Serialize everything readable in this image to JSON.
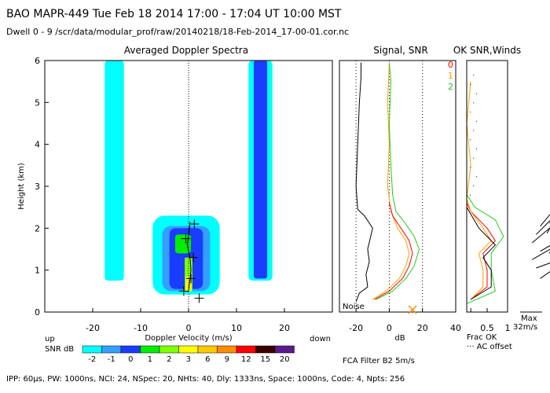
{
  "header": {
    "line1": "BAO  MAPR-449  Tue Feb 18 2014 17:00 - 17:04 UT 10:00 MST",
    "line2": "Dwell  0 - 9   /scr/data/modular_prof/raw/20140218/18-Feb-2014_17-00-01.cor.nc"
  },
  "footer": {
    "params": "IPP: 60μs,  PW: 1000ns,  NCI: 24,  NSpec: 20, NHts: 40,  Dly: 1333ns,  Space: 1000ns,  Code: 4,  Npts: 256",
    "fca": "FCA Filter B2  5m/s"
  },
  "colors": {
    "c_m2": "#00ffff",
    "c_m1": "#33a0ff",
    "c_0": "#1a3cff",
    "c_1": "#00ee00",
    "c_2": "#80ff00",
    "c_3": "#ffff00",
    "c_6": "#ffc800",
    "c_9": "#ff8c00",
    "c_12": "#ff0000",
    "c_15": "#3b0000",
    "c_20": "#5a1a8c",
    "noise": "#000000",
    "snr": "#ffa000",
    "ok0": "#ff0000",
    "ok1": "#ffa000",
    "ok2": "#22cc22"
  },
  "chart_data": [
    {
      "id": "doppler",
      "type": "heatmap",
      "title": "Averaged Doppler Spectra",
      "xlabel": "Doppler Velocity (m/s)",
      "ylabel": "Height (km)",
      "xlim": [
        -30,
        30
      ],
      "ylim": [
        0,
        6
      ],
      "x_ticks": [
        -20,
        -10,
        0,
        10,
        20
      ],
      "y_ticks": [
        0,
        1,
        2,
        3,
        4,
        5,
        6
      ],
      "up_label": "up",
      "down_label": "down",
      "colorbar_label": "SNR dB",
      "colorbar_levels": [
        "-2",
        "-1",
        "0",
        "1",
        "2",
        "3",
        "6",
        "9",
        "12",
        "15",
        "20"
      ],
      "regions": [
        {
          "name": "ground-clutter-left",
          "level": "-2",
          "x": [
            -17.5,
            -13.5
          ],
          "y": [
            0.75,
            6.0
          ]
        },
        {
          "name": "ground-clutter-right-outer",
          "level": "-2",
          "x": [
            12.5,
            17.5
          ],
          "y": [
            0.75,
            6.0
          ]
        },
        {
          "name": "ground-clutter-right-inner",
          "level": "0",
          "x": [
            13.6,
            16.4
          ],
          "y": [
            0.8,
            6.0
          ]
        },
        {
          "name": "echo-outer",
          "level": "-2",
          "x": [
            -7.5,
            6.5
          ],
          "y": [
            0.42,
            2.3
          ]
        },
        {
          "name": "echo-l1",
          "level": "-1",
          "x": [
            -5.5,
            4.5
          ],
          "y": [
            0.5,
            2.05
          ]
        },
        {
          "name": "echo-l2",
          "level": "0",
          "x": [
            -4,
            3
          ],
          "y": [
            0.55,
            2.0
          ]
        },
        {
          "name": "echo-core",
          "level": "1",
          "x": [
            -2.8,
            0.5
          ],
          "y": [
            1.4,
            1.85
          ]
        },
        {
          "name": "echo-column",
          "level": "2",
          "x": [
            -0.8,
            0.8
          ],
          "y": [
            0.5,
            1.3
          ]
        },
        {
          "name": "echo-column-top",
          "level": "3",
          "x": [
            -0.6,
            0.6
          ],
          "y": [
            0.5,
            0.85
          ]
        }
      ],
      "crosses": [
        [
          2.2,
          0.33
        ],
        [
          -1.0,
          0.5
        ],
        [
          0.5,
          0.8
        ],
        [
          1.0,
          1.3
        ],
        [
          -0.6,
          1.75
        ],
        [
          1.2,
          2.1
        ]
      ],
      "mean_velocity_curve": [
        [
          0,
          0.5
        ],
        [
          0.2,
          0.7
        ],
        [
          0.5,
          1.0
        ],
        [
          0.3,
          1.3
        ],
        [
          -0.3,
          1.6
        ],
        [
          0.1,
          1.9
        ],
        [
          0.3,
          2.15
        ]
      ]
    },
    {
      "id": "signal-snr",
      "type": "line",
      "title": "Signal, SNR",
      "xlabel": "dB",
      "xlim": [
        -30,
        40
      ],
      "ylim": [
        0,
        6
      ],
      "x_ticks": [
        -20,
        0,
        20,
        40
      ],
      "noise_label": "Noise",
      "series": [
        {
          "name": "Signal",
          "color_key": "noise",
          "points": [
            [
              -20,
              0.25
            ],
            [
              -18,
              0.45
            ],
            [
              -13,
              0.6
            ],
            [
              -14,
              0.9
            ],
            [
              -12,
              1.2
            ],
            [
              -13,
              1.5
            ],
            [
              -10,
              2.0
            ],
            [
              -15,
              2.3
            ],
            [
              -19,
              2.45
            ],
            [
              -20,
              3.0
            ],
            [
              -19,
              4.0
            ],
            [
              -18,
              5.0
            ],
            [
              -17,
              5.6
            ],
            [
              -17,
              5.95
            ]
          ]
        },
        {
          "name": "SNR",
          "color_key": "snr",
          "points": [
            [
              -10,
              0.3
            ],
            [
              -2,
              0.5
            ],
            [
              6,
              0.8
            ],
            [
              10,
              1.1
            ],
            [
              12,
              1.4
            ],
            [
              10,
              1.7
            ],
            [
              5,
              2.0
            ],
            [
              1,
              2.4
            ],
            [
              -1,
              3.0
            ],
            [
              0,
              4.0
            ],
            [
              -1,
              5.0
            ],
            [
              0,
              5.95
            ]
          ]
        },
        {
          "name": "SNR-1",
          "color_key": "ok0",
          "points": [
            [
              -9,
              0.3
            ],
            [
              0,
              0.5
            ],
            [
              8,
              0.8
            ],
            [
              12,
              1.1
            ],
            [
              14,
              1.4
            ],
            [
              12,
              1.7
            ],
            [
              7,
              2.0
            ],
            [
              2,
              2.3
            ],
            [
              0,
              2.6
            ]
          ]
        },
        {
          "name": "SNR-2",
          "color_key": "ok2",
          "points": [
            [
              -8,
              0.3
            ],
            [
              2,
              0.5
            ],
            [
              10,
              0.8
            ],
            [
              15,
              1.1
            ],
            [
              18,
              1.5
            ],
            [
              15,
              1.8
            ],
            [
              10,
              2.1
            ],
            [
              4,
              2.4
            ],
            [
              2,
              2.8
            ],
            [
              1,
              3.5
            ],
            [
              0,
              4.5
            ],
            [
              1,
              5.5
            ],
            [
              0,
              5.95
            ]
          ]
        }
      ],
      "marker": {
        "symbol": "x",
        "x": 14,
        "y": 0.0
      }
    },
    {
      "id": "ok-snr",
      "type": "line",
      "title": "OK SNR,Winds",
      "xlabel": "Frac OK",
      "xlim": [
        0,
        1
      ],
      "ylim": [
        0,
        6
      ],
      "x_ticks": [
        0.5,
        1
      ],
      "x_tick_labels": [
        "0.5",
        "1"
      ],
      "legend": [
        "0",
        "1",
        "2"
      ],
      "ac_label": "··· AC offset",
      "max_label": "Max",
      "max_value": "32m/s",
      "series": [
        {
          "name": "0",
          "color_key": "ok0",
          "points": [
            [
              0.1,
              0.3
            ],
            [
              0.5,
              0.6
            ],
            [
              0.5,
              1.0
            ],
            [
              0.4,
              1.4
            ],
            [
              0.7,
              1.7
            ],
            [
              0.5,
              2.0
            ],
            [
              0.1,
              2.4
            ],
            [
              0.0,
              2.6
            ]
          ]
        },
        {
          "name": "1",
          "color_key": "ok1",
          "points": [
            [
              0.1,
              0.3
            ],
            [
              0.4,
              0.6
            ],
            [
              0.4,
              1.0
            ],
            [
              0.3,
              1.4
            ],
            [
              0.6,
              1.7
            ],
            [
              0.4,
              2.0
            ],
            [
              0.1,
              2.4
            ],
            [
              0.0,
              2.7
            ],
            [
              0.1,
              3.5
            ],
            [
              0.0,
              4.5
            ],
            [
              0.1,
              5.5
            ]
          ]
        },
        {
          "name": "2",
          "color_key": "ok2",
          "points": [
            [
              0.0,
              0.2
            ],
            [
              0.7,
              0.5
            ],
            [
              0.6,
              1.0
            ],
            [
              0.6,
              1.4
            ],
            [
              0.9,
              1.8
            ],
            [
              0.7,
              2.2
            ],
            [
              0.2,
              2.5
            ],
            [
              0.0,
              2.8
            ],
            [
              0.0,
              5.9
            ]
          ]
        },
        {
          "name": "noise-frac",
          "color_key": "noise",
          "points": [
            [
              0.1,
              0.3
            ],
            [
              0.6,
              0.6
            ],
            [
              0.6,
              1.0
            ],
            [
              0.4,
              1.3
            ],
            [
              0.7,
              1.6
            ],
            [
              0.3,
              2.0
            ],
            [
              0.0,
              2.5
            ]
          ]
        }
      ],
      "wind_barbs": [
        [
          1.8,
          0.8,
          -35
        ],
        [
          1.7,
          1.05,
          -20
        ],
        [
          1.6,
          1.25,
          -30
        ],
        [
          1.8,
          1.45,
          -30
        ],
        [
          1.6,
          1.65,
          -40
        ],
        [
          1.7,
          1.85,
          -45
        ],
        [
          1.8,
          2.05,
          -50
        ]
      ]
    }
  ]
}
